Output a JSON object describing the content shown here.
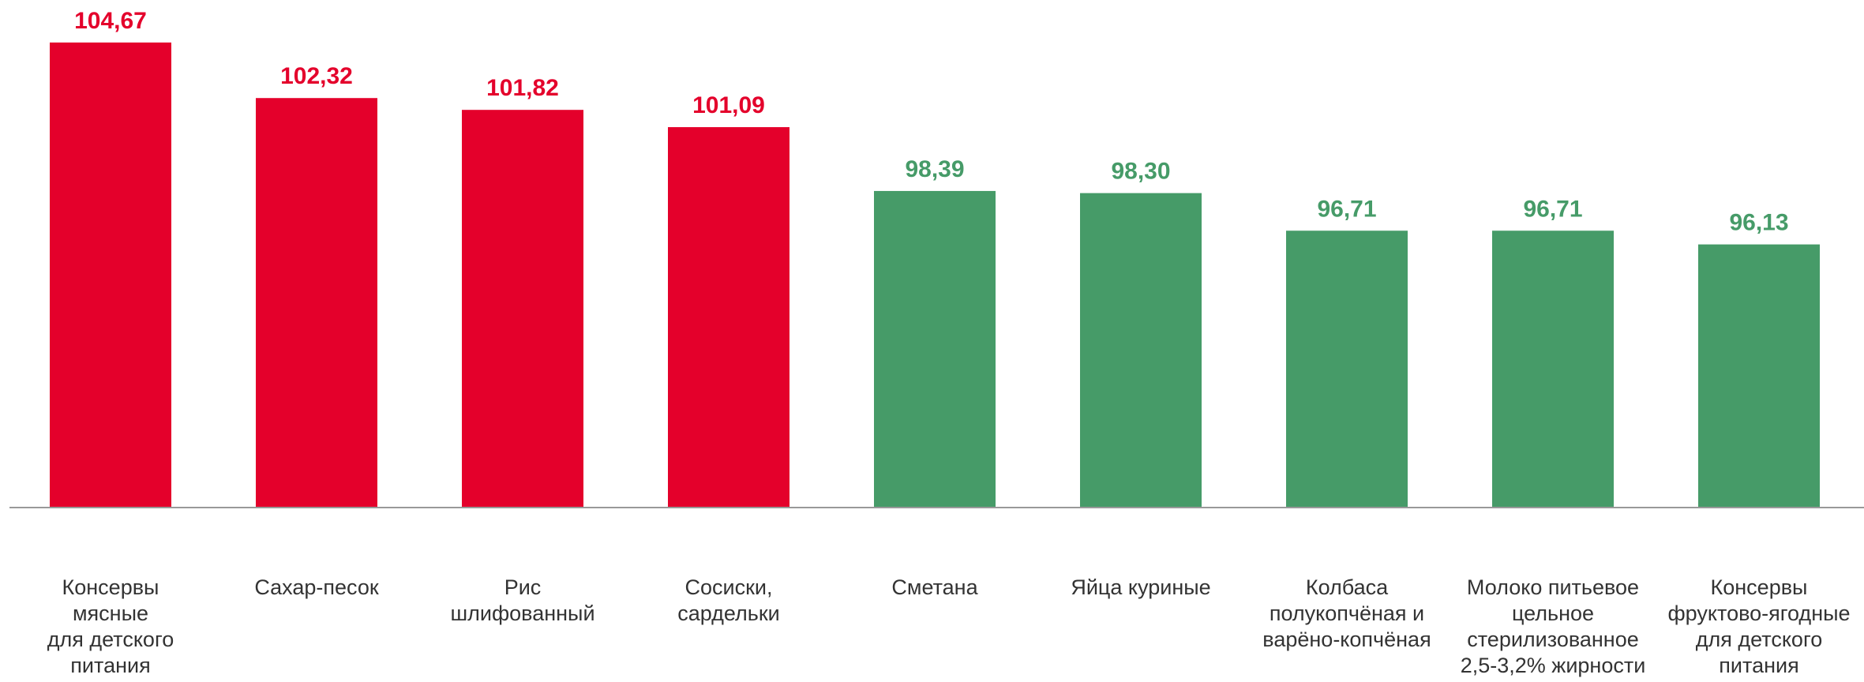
{
  "chart_data": {
    "type": "bar",
    "categories": [
      "Консервы\nмясные\nдля детского\nпитания",
      "Сахар-песок",
      "Рис\nшлифованный",
      "Сосиски,\nсардельки",
      "Сметана",
      "Яйца куриные",
      "Колбаса\nполукопчёная и\nварёно-копчёная",
      "Молоко питьевое\nцельное\nстерилизованное\n2,5-3,2% жирности",
      "Консервы\nфруктово-ягодные\nдля детского\nпитания"
    ],
    "values": [
      104.67,
      102.32,
      101.82,
      101.09,
      98.39,
      98.3,
      96.71,
      96.71,
      96.13
    ],
    "value_labels": [
      "104,67",
      "102,32",
      "101,82",
      "101,09",
      "98,39",
      "98,30",
      "96,71",
      "96,71",
      "96,13"
    ],
    "colors": [
      "#e4002b",
      "#e4002b",
      "#e4002b",
      "#e4002b",
      "#469b68",
      "#469b68",
      "#469b68",
      "#469b68",
      "#469b68"
    ],
    "ylim": [
      85,
      106
    ]
  }
}
